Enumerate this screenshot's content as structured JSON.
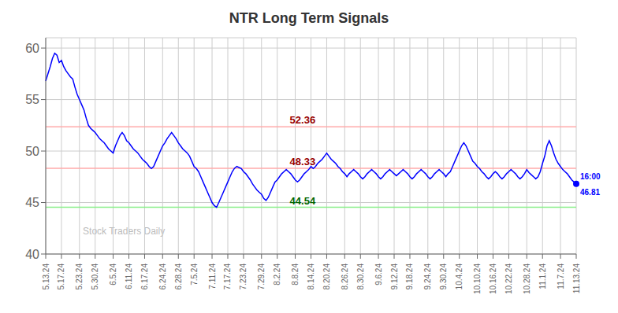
{
  "chart_data": {
    "type": "line",
    "title": "NTR Long Term Signals",
    "color": "blue",
    "grid": true,
    "ylim": [
      40,
      61
    ],
    "yticks": [
      40,
      45,
      50,
      55,
      60
    ],
    "categories": [
      "5.13.24",
      null,
      null,
      null,
      null,
      null,
      null,
      "5.17.24",
      null,
      null,
      null,
      null,
      null,
      null,
      null,
      "5.23.24",
      null,
      null,
      null,
      null,
      null,
      null,
      "5.30.24",
      null,
      null,
      null,
      null,
      null,
      null,
      null,
      "6.5.24",
      null,
      null,
      null,
      null,
      null,
      null,
      "6.11.24",
      null,
      null,
      null,
      null,
      null,
      null,
      "6.17.24",
      null,
      null,
      null,
      null,
      null,
      null,
      null,
      "6.24.24",
      null,
      null,
      null,
      null,
      null,
      null,
      "6.28.24",
      null,
      null,
      null,
      null,
      null,
      null,
      "7.5.24",
      null,
      null,
      null,
      null,
      null,
      null,
      null,
      "7.11.24",
      null,
      null,
      null,
      null,
      null,
      null,
      "7.17.24",
      null,
      null,
      null,
      null,
      null,
      null,
      "7.23.24",
      null,
      null,
      null,
      null,
      null,
      null,
      null,
      "7.29.24",
      null,
      null,
      null,
      null,
      null,
      null,
      "8.2.24",
      null,
      null,
      null,
      null,
      null,
      null,
      null,
      "8.8.24",
      null,
      null,
      null,
      null,
      null,
      null,
      "8.14.24",
      null,
      null,
      null,
      null,
      null,
      null,
      "8.20.24",
      null,
      null,
      null,
      null,
      null,
      null,
      null,
      "8.26.24",
      null,
      null,
      null,
      null,
      null,
      null,
      "8.30.24",
      null,
      null,
      null,
      null,
      null,
      null,
      null,
      "9.6.24",
      null,
      null,
      null,
      null,
      null,
      null,
      "9.12.24",
      null,
      null,
      null,
      null,
      null,
      null,
      "9.18.24",
      null,
      null,
      null,
      null,
      null,
      null,
      null,
      "9.24.24",
      null,
      null,
      null,
      null,
      null,
      null,
      "9.30.24",
      null,
      null,
      null,
      null,
      null,
      null,
      "10.4.24",
      null,
      null,
      null,
      null,
      null,
      null,
      null,
      "10.10.24",
      null,
      null,
      null,
      null,
      null,
      null,
      "10.16.24",
      null,
      null,
      null,
      null,
      null,
      null,
      "10.22.24",
      null,
      null,
      null,
      null,
      null,
      null,
      null,
      "10.28.24",
      null,
      null,
      null,
      null,
      null,
      null,
      "11.1.24",
      null,
      null,
      null,
      null,
      null,
      null,
      null,
      "11.7.24",
      null,
      null,
      null,
      null,
      null,
      null,
      "11.13.24"
    ],
    "values": [
      56.8,
      57.5,
      58.2,
      59.0,
      59.5,
      59.3,
      58.6,
      58.8,
      58.2,
      57.8,
      57.5,
      57.2,
      57.0,
      56.2,
      55.5,
      55.0,
      54.5,
      54.0,
      53.2,
      52.5,
      52.2,
      52.0,
      51.8,
      51.5,
      51.2,
      51.0,
      50.8,
      50.5,
      50.2,
      50.0,
      49.8,
      50.5,
      51.0,
      51.5,
      51.8,
      51.5,
      51.0,
      50.8,
      50.5,
      50.2,
      50.0,
      49.8,
      49.5,
      49.2,
      49.0,
      48.8,
      48.5,
      48.3,
      48.5,
      49.0,
      49.5,
      50.0,
      50.5,
      50.8,
      51.2,
      51.5,
      51.8,
      51.5,
      51.2,
      50.8,
      50.5,
      50.2,
      50.0,
      49.8,
      49.5,
      49.0,
      48.5,
      48.3,
      48.0,
      47.5,
      47.0,
      46.5,
      46.0,
      45.5,
      45.0,
      44.7,
      44.54,
      45.0,
      45.5,
      46.0,
      46.5,
      47.0,
      47.5,
      48.0,
      48.33,
      48.5,
      48.4,
      48.3,
      48.0,
      47.8,
      47.5,
      47.2,
      46.8,
      46.5,
      46.2,
      46.0,
      45.8,
      45.4,
      45.2,
      45.5,
      46.0,
      46.5,
      47.0,
      47.2,
      47.5,
      47.8,
      48.0,
      48.2,
      48.0,
      47.8,
      47.5,
      47.2,
      47.0,
      47.2,
      47.5,
      47.8,
      48.0,
      48.2,
      48.5,
      48.3,
      48.5,
      48.8,
      49.0,
      49.2,
      49.5,
      49.8,
      49.5,
      49.2,
      49.0,
      48.8,
      48.5,
      48.3,
      48.0,
      47.8,
      47.5,
      47.8,
      48.0,
      48.2,
      48.0,
      47.8,
      47.5,
      47.3,
      47.5,
      47.8,
      48.0,
      48.2,
      48.0,
      47.8,
      47.5,
      47.3,
      47.5,
      47.8,
      48.0,
      48.2,
      48.0,
      47.8,
      47.6,
      47.8,
      48.0,
      48.2,
      48.0,
      47.8,
      47.5,
      47.3,
      47.5,
      47.8,
      48.0,
      48.2,
      48.0,
      47.8,
      47.5,
      47.3,
      47.5,
      47.8,
      48.0,
      48.2,
      48.0,
      47.8,
      47.5,
      47.8,
      48.0,
      48.5,
      49.0,
      49.5,
      50.0,
      50.5,
      50.8,
      50.5,
      50.0,
      49.5,
      49.0,
      48.8,
      48.5,
      48.3,
      48.0,
      47.8,
      47.5,
      47.3,
      47.5,
      47.8,
      48.0,
      47.8,
      47.5,
      47.3,
      47.5,
      47.8,
      48.0,
      48.2,
      48.0,
      47.8,
      47.5,
      47.3,
      47.5,
      47.8,
      48.2,
      47.9,
      47.7,
      47.5,
      47.3,
      47.5,
      48.0,
      48.8,
      49.5,
      50.5,
      51.0,
      50.5,
      49.8,
      49.2,
      48.8,
      48.5,
      48.2,
      48.0,
      47.8,
      47.5,
      47.2,
      47.0,
      46.81
    ],
    "reference_lines": [
      {
        "value": 52.36,
        "color": "#ffaaaa",
        "label_color": "#990000"
      },
      {
        "value": 48.33,
        "color": "#ffaaaa",
        "label_color": "#990000"
      },
      {
        "value": 44.54,
        "color": "#88ee88",
        "label_color": "#006600"
      }
    ],
    "last_point": {
      "value": 46.81,
      "time": "16:00",
      "color": "blue"
    },
    "watermark": {
      "text": "Stock Traders Daily",
      "color": "#bbbbbb"
    }
  }
}
